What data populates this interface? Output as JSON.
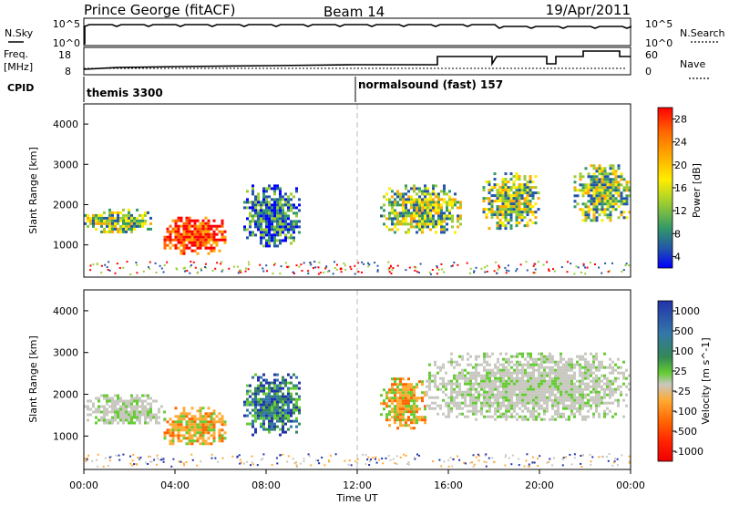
{
  "header": {
    "station": "Prince George (fitACF)",
    "beam": "Beam 14",
    "date": "19/Apr/2011"
  },
  "top_panels": {
    "nsky_label": "N.Sky",
    "nsky_ticks": [
      "10^5",
      "10^0"
    ],
    "nsearch_label": "N.Search",
    "nsearch_ticks": [
      "10^5",
      "10^0"
    ],
    "freq_label_1": "Freq.",
    "freq_label_2": "[MHz]",
    "freq_ticks": [
      "18",
      "8"
    ],
    "nave_label": "Nave",
    "nave_ticks": [
      "60",
      "0"
    ],
    "cpid_label": "CPID",
    "cpid_segments": [
      {
        "name": "themis 3300",
        "start_hour": 0
      },
      {
        "name": "normalsound (fast) 157",
        "start_hour": 12
      }
    ]
  },
  "x_axis": {
    "label": "Time UT",
    "ticks": [
      "00:00",
      "04:00",
      "08:00",
      "12:00",
      "16:00",
      "20:00",
      "00:00"
    ]
  },
  "chart_data": [
    {
      "type": "heatmap",
      "panel": "power",
      "ylabel": "Slant Range [km]",
      "yticks": [
        "4000",
        "3000",
        "2000",
        "1000"
      ],
      "ylim": [
        200,
        4500
      ],
      "xlim_hours": [
        0,
        24
      ],
      "colorbar_label": "Power [dB]",
      "colorbar_ticks": [
        "28",
        "24",
        "20",
        "16",
        "12",
        "8",
        "4"
      ],
      "colorbar_colors": [
        "#ff0000",
        "#ff6600",
        "#ffaa00",
        "#ffee00",
        "#99cc33",
        "#339966",
        "#2255aa",
        "#0000ff"
      ],
      "echo_regions": [
        {
          "t0": 0.0,
          "t1": 3.0,
          "r0": 1300,
          "r1": 1900,
          "level": "medium"
        },
        {
          "t0": 3.5,
          "t1": 6.2,
          "r0": 800,
          "r1": 1700,
          "level": "high"
        },
        {
          "t0": 7.0,
          "t1": 9.5,
          "r0": 1000,
          "r1": 2500,
          "level": "low"
        },
        {
          "t0": 13.0,
          "t1": 16.5,
          "r0": 1300,
          "r1": 2500,
          "level": "medium"
        },
        {
          "t0": 17.5,
          "t1": 20.0,
          "r0": 1400,
          "r1": 2800,
          "level": "medium"
        },
        {
          "t0": 21.5,
          "t1": 24.0,
          "r0": 1600,
          "r1": 3000,
          "level": "medium"
        }
      ]
    },
    {
      "type": "heatmap",
      "panel": "velocity",
      "ylabel": "Slant Range [km]",
      "yticks": [
        "4000",
        "3000",
        "2000",
        "1000"
      ],
      "ylim": [
        200,
        4500
      ],
      "xlim_hours": [
        0,
        24
      ],
      "colorbar_label": "Velocity [m s^-1]",
      "colorbar_ticks": [
        "1000",
        "500",
        "100",
        "25",
        "-25",
        "-100",
        "-500",
        "-1000"
      ],
      "colorbar_colors": [
        "#2233aa",
        "#3377aa",
        "#338855",
        "#66cc33",
        "#c8c8c0",
        "#ffaa33",
        "#ff6600",
        "#ff2200",
        "#ee0000"
      ],
      "echo_regions": [
        {
          "t0": 0.0,
          "t1": 3.5,
          "r0": 1300,
          "r1": 2000,
          "level": "ground"
        },
        {
          "t0": 3.5,
          "t1": 6.2,
          "r0": 800,
          "r1": 1700,
          "level": "toward"
        },
        {
          "t0": 7.0,
          "t1": 9.5,
          "r0": 1000,
          "r1": 2500,
          "level": "away"
        },
        {
          "t0": 13.0,
          "t1": 15.0,
          "r0": 1200,
          "r1": 2400,
          "level": "toward"
        },
        {
          "t0": 15.0,
          "t1": 24.0,
          "r0": 1400,
          "r1": 3000,
          "level": "ground"
        }
      ]
    }
  ]
}
